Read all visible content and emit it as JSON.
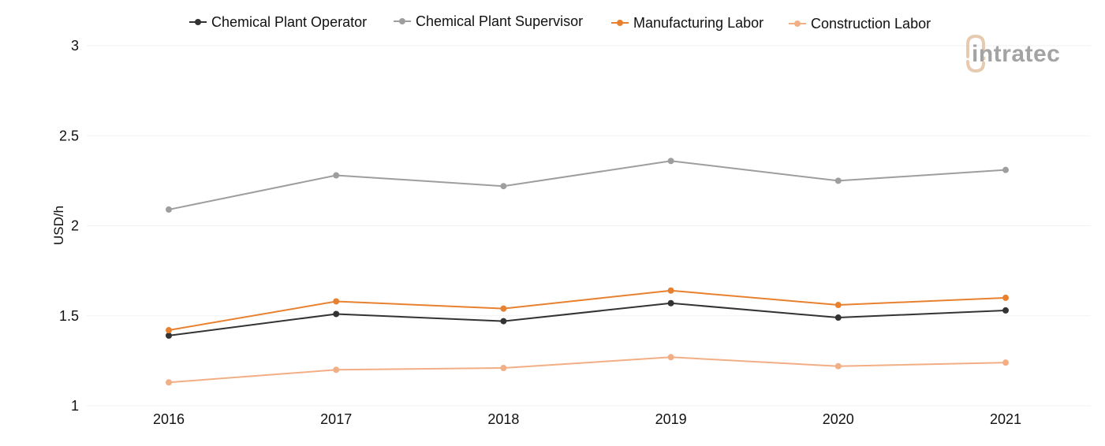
{
  "chart_data": {
    "type": "line",
    "title": "",
    "xlabel": "",
    "ylabel": "USD/h",
    "x": [
      "2016",
      "2017",
      "2018",
      "2019",
      "2020",
      "2021"
    ],
    "ylim": [
      1,
      3
    ],
    "yticks": [
      1,
      1.5,
      2,
      2.5,
      3
    ],
    "ytick_labels": [
      "1",
      "1.5",
      "2",
      "2.5",
      "3"
    ],
    "grid": true,
    "legend_position": "top",
    "series": [
      {
        "name": "Chemical Plant Operator",
        "color": "#333333",
        "values": [
          1.39,
          1.51,
          1.47,
          1.57,
          1.49,
          1.53
        ]
      },
      {
        "name": "Chemical Plant Supervisor",
        "color": "#9e9e9e",
        "values": [
          2.09,
          2.28,
          2.22,
          2.36,
          2.25,
          2.31
        ]
      },
      {
        "name": "Manufacturing Labor",
        "color": "#e8812f",
        "values": [
          1.42,
          1.58,
          1.54,
          1.64,
          1.56,
          1.6
        ]
      },
      {
        "name": "Construction Labor",
        "color": "#f2ae84",
        "values": [
          1.13,
          1.2,
          1.21,
          1.27,
          1.22,
          1.24
        ]
      }
    ]
  },
  "logo": {
    "text": "intratec",
    "icon": "intratec-logo-icon",
    "accent_color": "#e7cbb0",
    "text_color": "#a3a3a3"
  }
}
